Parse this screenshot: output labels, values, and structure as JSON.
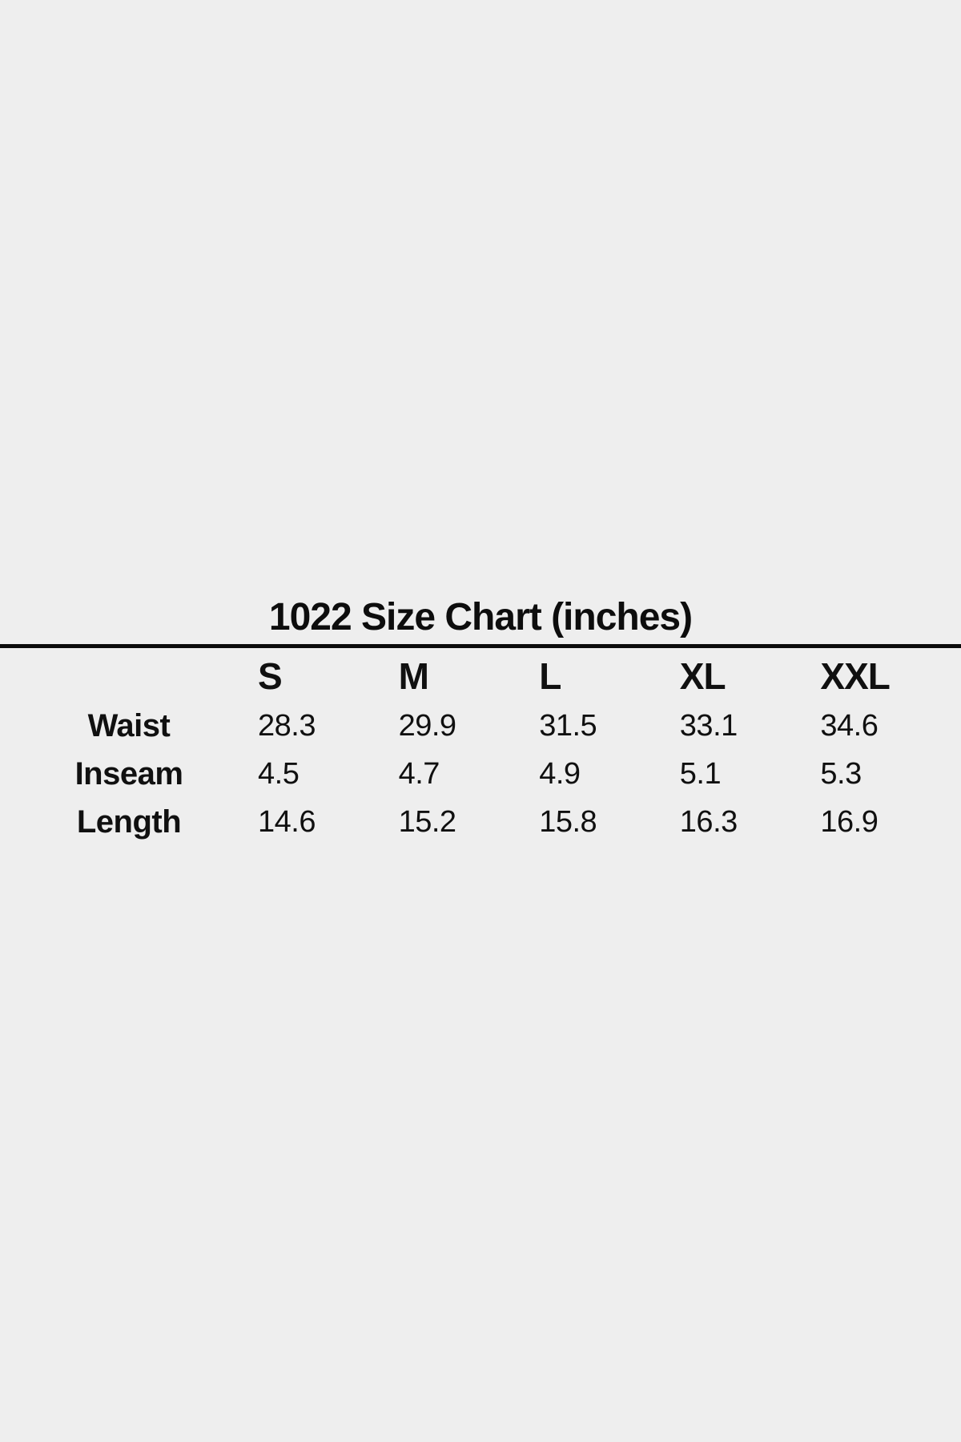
{
  "page": {
    "background_color": "#eeeeee",
    "text_color": "#101010",
    "divider_color": "#0b0b0b"
  },
  "chart_data": {
    "type": "table",
    "title": "1022 Size Chart (inches)",
    "unit": "inches",
    "columns": [
      "",
      "S",
      "M",
      "L",
      "XL",
      "XXL"
    ],
    "rows": [
      {
        "label": "Waist",
        "values": [
          28.3,
          29.9,
          31.5,
          33.1,
          34.6
        ]
      },
      {
        "label": "Inseam",
        "values": [
          4.5,
          4.7,
          4.9,
          5.1,
          5.3
        ]
      },
      {
        "label": "Length",
        "values": [
          14.6,
          15.2,
          15.8,
          16.3,
          16.9
        ]
      }
    ]
  }
}
